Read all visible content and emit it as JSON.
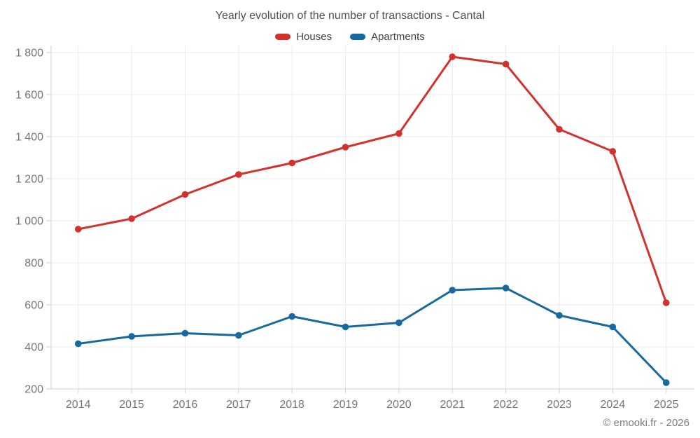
{
  "chart_data": {
    "type": "line",
    "title": "Yearly evolution of the number of transactions - Cantal",
    "footer": "© emooki.fr - 2026",
    "categories": [
      "2014",
      "2015",
      "2016",
      "2017",
      "2018",
      "2019",
      "2020",
      "2021",
      "2022",
      "2023",
      "2024",
      "2025"
    ],
    "series": [
      {
        "name": "Houses",
        "color": "#d3322c",
        "values": [
          960,
          1010,
          1125,
          1220,
          1275,
          1350,
          1415,
          1780,
          1745,
          1435,
          1330,
          610
        ]
      },
      {
        "name": "Apartments",
        "color": "#17699e",
        "values": [
          415,
          450,
          465,
          455,
          545,
          495,
          515,
          670,
          680,
          550,
          495,
          230
        ]
      }
    ],
    "ylim": [
      200,
      1800
    ],
    "yticks": [
      {
        "value": 200,
        "label": "200"
      },
      {
        "value": 400,
        "label": "400"
      },
      {
        "value": 600,
        "label": "600"
      },
      {
        "value": 800,
        "label": "800"
      },
      {
        "value": 1000,
        "label": "1 000"
      },
      {
        "value": 1200,
        "label": "1 200"
      },
      {
        "value": 1400,
        "label": "1 400"
      },
      {
        "value": 1600,
        "label": "1 600"
      },
      {
        "value": 1800,
        "label": "1 800"
      }
    ],
    "grid": true,
    "legend_position": "top",
    "grid_color": "#e9e9e9",
    "axis_color": "#cfcfcf",
    "tick_label_color": "#757575"
  }
}
